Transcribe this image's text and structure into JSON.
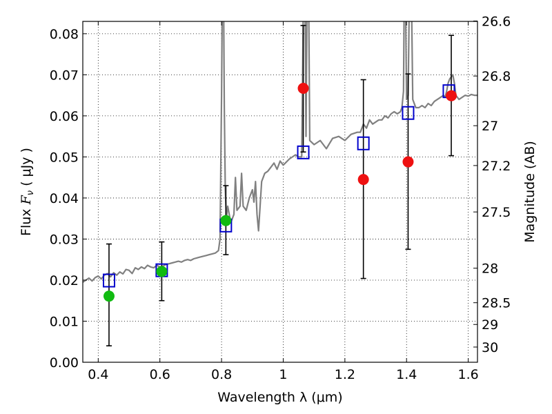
{
  "chart_data": {
    "type": "scatter",
    "xlabel": "Wavelength  λ (μm)",
    "ylabel_text": "Flux  ",
    "ylabel_symbol": "F",
    "ylabel_subscript": "ν",
    "ylabel_unit": " ( μJy )",
    "y2label": "Magnitude (AB)",
    "xlim": [
      0.35,
      1.63
    ],
    "ylim": [
      0.0,
      0.083
    ],
    "grid": true,
    "xticks": [
      0.4,
      0.6,
      0.8,
      1.0,
      1.2,
      1.4,
      1.6
    ],
    "xtick_labels": [
      "0.4",
      "0.6",
      "0.8",
      "1",
      "1.2",
      "1.4",
      "1.6"
    ],
    "yticks": [
      0.0,
      0.01,
      0.02,
      0.03,
      0.04,
      0.05,
      0.06,
      0.07,
      0.08
    ],
    "ytick_labels": [
      "0.00",
      "0.01",
      "0.02",
      "0.03",
      "0.04",
      "0.05",
      "0.06",
      "0.07",
      "0.08"
    ],
    "y2ticks": [
      {
        "flux": 0.0831,
        "label": "26.6"
      },
      {
        "flux": 0.0697,
        "label": "26.8"
      },
      {
        "flux": 0.0576,
        "label": "27"
      },
      {
        "flux": 0.0479,
        "label": "27.2"
      },
      {
        "flux": 0.0366,
        "label": "27.5"
      },
      {
        "flux": 0.0229,
        "label": "28"
      },
      {
        "flux": 0.0145,
        "label": "28.5"
      },
      {
        "flux": 0.0092,
        "label": "29"
      },
      {
        "flux": 0.0037,
        "label": "30"
      }
    ],
    "model_spectrum": [
      [
        0.35,
        0.0195
      ],
      [
        0.36,
        0.02
      ],
      [
        0.37,
        0.0205
      ],
      [
        0.38,
        0.0198
      ],
      [
        0.39,
        0.0206
      ],
      [
        0.4,
        0.021
      ],
      [
        0.41,
        0.0203
      ],
      [
        0.42,
        0.0212
      ],
      [
        0.43,
        0.0216
      ],
      [
        0.44,
        0.0208
      ],
      [
        0.45,
        0.0218
      ],
      [
        0.46,
        0.0212
      ],
      [
        0.47,
        0.022
      ],
      [
        0.48,
        0.0215
      ],
      [
        0.49,
        0.0226
      ],
      [
        0.5,
        0.0224
      ],
      [
        0.51,
        0.0216
      ],
      [
        0.52,
        0.023
      ],
      [
        0.53,
        0.0226
      ],
      [
        0.54,
        0.0232
      ],
      [
        0.55,
        0.0228
      ],
      [
        0.56,
        0.0236
      ],
      [
        0.57,
        0.0232
      ],
      [
        0.58,
        0.023
      ],
      [
        0.59,
        0.0236
      ],
      [
        0.6,
        0.0232
      ],
      [
        0.61,
        0.0234
      ],
      [
        0.62,
        0.0238
      ],
      [
        0.63,
        0.024
      ],
      [
        0.64,
        0.0242
      ],
      [
        0.65,
        0.0244
      ],
      [
        0.66,
        0.0246
      ],
      [
        0.67,
        0.0244
      ],
      [
        0.68,
        0.0248
      ],
      [
        0.69,
        0.025
      ],
      [
        0.7,
        0.0248
      ],
      [
        0.71,
        0.0252
      ],
      [
        0.72,
        0.0254
      ],
      [
        0.73,
        0.0256
      ],
      [
        0.74,
        0.0258
      ],
      [
        0.75,
        0.026
      ],
      [
        0.76,
        0.0262
      ],
      [
        0.77,
        0.0264
      ],
      [
        0.78,
        0.0266
      ],
      [
        0.79,
        0.0272
      ],
      [
        0.795,
        0.03
      ],
      [
        0.8,
        0.065
      ],
      [
        0.803,
        0.095
      ],
      [
        0.806,
        0.095
      ],
      [
        0.809,
        0.062
      ],
      [
        0.812,
        0.042
      ],
      [
        0.816,
        0.035
      ],
      [
        0.82,
        0.038
      ],
      [
        0.83,
        0.034
      ],
      [
        0.84,
        0.036
      ],
      [
        0.845,
        0.045
      ],
      [
        0.85,
        0.037
      ],
      [
        0.86,
        0.038
      ],
      [
        0.865,
        0.046
      ],
      [
        0.87,
        0.038
      ],
      [
        0.88,
        0.037
      ],
      [
        0.89,
        0.04
      ],
      [
        0.9,
        0.042
      ],
      [
        0.905,
        0.039
      ],
      [
        0.91,
        0.044
      ],
      [
        0.915,
        0.036
      ],
      [
        0.92,
        0.032
      ],
      [
        0.93,
        0.044
      ],
      [
        0.94,
        0.046
      ],
      [
        0.95,
        0.0465
      ],
      [
        0.96,
        0.0475
      ],
      [
        0.97,
        0.0485
      ],
      [
        0.98,
        0.047
      ],
      [
        0.99,
        0.049
      ],
      [
        1.0,
        0.048
      ],
      [
        1.02,
        0.0495
      ],
      [
        1.04,
        0.0505
      ],
      [
        1.05,
        0.05
      ],
      [
        1.06,
        0.05
      ],
      [
        1.063,
        0.07
      ],
      [
        1.066,
        0.095
      ],
      [
        1.07,
        0.095
      ],
      [
        1.074,
        0.055
      ],
      [
        1.078,
        0.095
      ],
      [
        1.082,
        0.095
      ],
      [
        1.086,
        0.054
      ],
      [
        1.1,
        0.053
      ],
      [
        1.12,
        0.054
      ],
      [
        1.14,
        0.052
      ],
      [
        1.16,
        0.0545
      ],
      [
        1.18,
        0.055
      ],
      [
        1.2,
        0.054
      ],
      [
        1.22,
        0.0555
      ],
      [
        1.24,
        0.056
      ],
      [
        1.25,
        0.056
      ],
      [
        1.26,
        0.058
      ],
      [
        1.27,
        0.057
      ],
      [
        1.28,
        0.059
      ],
      [
        1.29,
        0.058
      ],
      [
        1.3,
        0.0585
      ],
      [
        1.31,
        0.059
      ],
      [
        1.32,
        0.059
      ],
      [
        1.33,
        0.06
      ],
      [
        1.34,
        0.0595
      ],
      [
        1.35,
        0.0605
      ],
      [
        1.36,
        0.061
      ],
      [
        1.37,
        0.0605
      ],
      [
        1.38,
        0.061
      ],
      [
        1.385,
        0.062
      ],
      [
        1.39,
        0.066
      ],
      [
        1.393,
        0.095
      ],
      [
        1.396,
        0.095
      ],
      [
        1.4,
        0.064
      ],
      [
        1.405,
        0.065
      ],
      [
        1.41,
        0.095
      ],
      [
        1.415,
        0.095
      ],
      [
        1.42,
        0.064
      ],
      [
        1.43,
        0.062
      ],
      [
        1.44,
        0.062
      ],
      [
        1.45,
        0.0625
      ],
      [
        1.46,
        0.062
      ],
      [
        1.47,
        0.063
      ],
      [
        1.48,
        0.0625
      ],
      [
        1.49,
        0.0635
      ],
      [
        1.5,
        0.064
      ],
      [
        1.51,
        0.0645
      ],
      [
        1.52,
        0.065
      ],
      [
        1.525,
        0.0645
      ],
      [
        1.53,
        0.066
      ],
      [
        1.535,
        0.068
      ],
      [
        1.54,
        0.069
      ],
      [
        1.55,
        0.07
      ],
      [
        1.555,
        0.068
      ],
      [
        1.56,
        0.065
      ],
      [
        1.57,
        0.064
      ],
      [
        1.58,
        0.0645
      ],
      [
        1.59,
        0.065
      ],
      [
        1.6,
        0.0648
      ],
      [
        1.61,
        0.0652
      ],
      [
        1.62,
        0.065
      ],
      [
        1.63,
        0.065
      ]
    ],
    "model_squares": [
      {
        "x": 0.435,
        "y": 0.0199
      },
      {
        "x": 0.606,
        "y": 0.0224
      },
      {
        "x": 0.814,
        "y": 0.0333
      },
      {
        "x": 1.065,
        "y": 0.0511
      },
      {
        "x": 1.26,
        "y": 0.0533
      },
      {
        "x": 1.405,
        "y": 0.0607
      },
      {
        "x": 1.537,
        "y": 0.066
      }
    ],
    "detections": [
      {
        "x": 0.435,
        "y": 0.0161,
        "err_low": 0.004,
        "err_high": 0.0288
      },
      {
        "x": 0.606,
        "y": 0.0221,
        "err_low": 0.015,
        "err_high": 0.0293
      },
      {
        "x": 0.814,
        "y": 0.0345,
        "err_low": 0.0262,
        "err_high": 0.043
      }
    ],
    "low_sn_points": [
      {
        "x": 1.065,
        "y": 0.0667,
        "err_low": 0.0512,
        "err_high": 0.082
      },
      {
        "x": 1.26,
        "y": 0.0445,
        "err_low": 0.0204,
        "err_high": 0.0688
      },
      {
        "x": 1.405,
        "y": 0.0488,
        "err_low": 0.0275,
        "err_high": 0.0702
      },
      {
        "x": 1.545,
        "y": 0.0649,
        "err_low": 0.0503,
        "err_high": 0.0796
      }
    ],
    "colors": {
      "spectrum": "#808080",
      "square": "#0000cc",
      "detection": "#11bb11",
      "low_sn": "#ee1111",
      "errorbar": "#000000",
      "grid": "#000000",
      "axes": "#000000"
    }
  }
}
